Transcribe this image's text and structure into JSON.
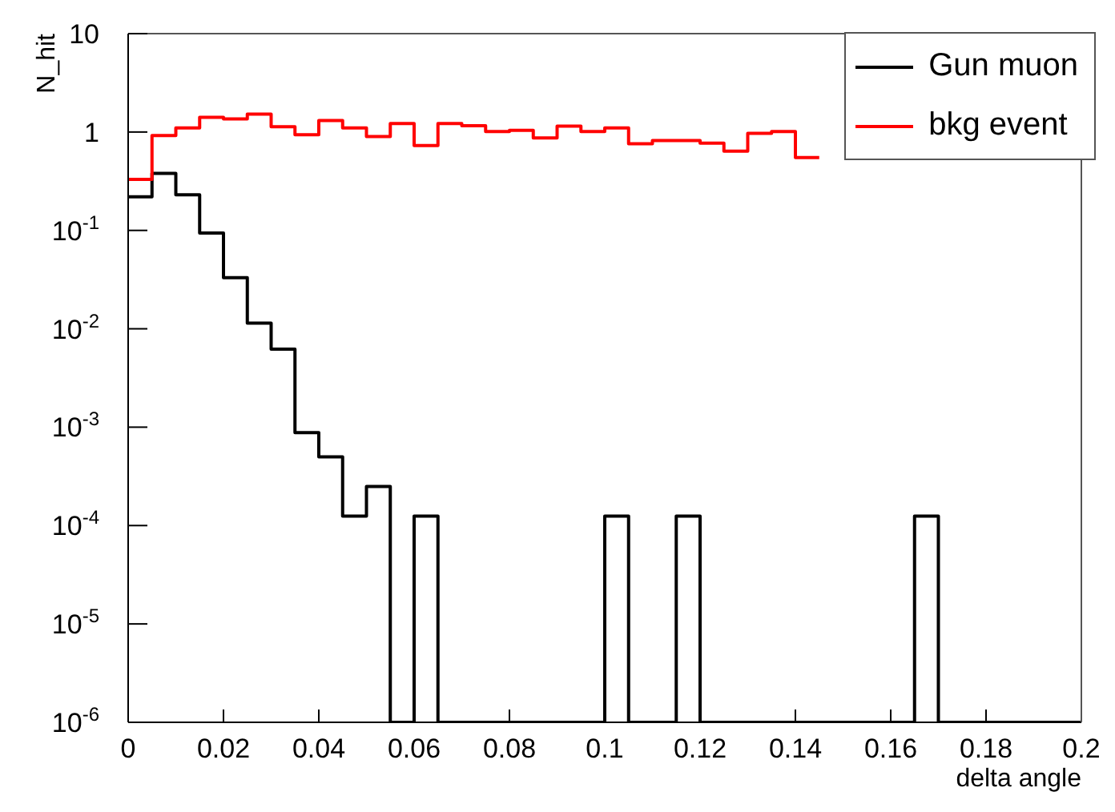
{
  "chart_data": {
    "type": "histogram",
    "xlabel": "delta angle",
    "ylabel": "N_hit",
    "log": "y",
    "legend": "top right",
    "bins": [
      0,
      0.005,
      0.01,
      0.015,
      0.02,
      0.025,
      0.03,
      0.035,
      0.04,
      0.045,
      0.05,
      0.055,
      0.06,
      0.065,
      0.07,
      0.075,
      0.08,
      0.085,
      0.09,
      0.095,
      0.1,
      0.105,
      0.11,
      0.115,
      0.12,
      0.125,
      0.13,
      0.135,
      0.14,
      0.145,
      0.15,
      0.155,
      0.16,
      0.165,
      0.17,
      0.175,
      0.18,
      0.185,
      0.19,
      0.195,
      0.2
    ],
    "series": [
      {
        "name": "Gun muon",
        "color": "#000000",
        "values": [
          0.22,
          0.38,
          0.23,
          0.094,
          0.033,
          0.0114,
          0.0062,
          0.00088,
          0.0005,
          0.000125,
          0.00025,
          1e-06,
          0.000125,
          1e-06,
          1e-06,
          1e-06,
          1e-06,
          1e-06,
          1e-06,
          1e-06,
          0.000125,
          1e-06,
          1e-06,
          0.000125,
          1e-06,
          1e-06,
          1e-06,
          1e-06,
          1e-06,
          1e-06,
          1e-06,
          1e-06,
          1e-06,
          0.000125,
          1e-06,
          1e-06,
          1e-06,
          1e-06,
          1e-06,
          1e-06
        ]
      },
      {
        "name": "bkg event",
        "color": "#ff0000",
        "bins": [
          0,
          0.005,
          0.01,
          0.015,
          0.02,
          0.025,
          0.03,
          0.035,
          0.04,
          0.045,
          0.05,
          0.055,
          0.06,
          0.065,
          0.07,
          0.075,
          0.08,
          0.085,
          0.09,
          0.095,
          0.1,
          0.105,
          0.11,
          0.115,
          0.12,
          0.125,
          0.13,
          0.135,
          0.14,
          0.145
        ],
        "values": [
          0.33,
          0.92,
          1.1,
          1.41,
          1.36,
          1.52,
          1.13,
          0.94,
          1.31,
          1.1,
          0.9,
          1.22,
          0.73,
          1.22,
          1.16,
          1.01,
          1.04,
          0.87,
          1.15,
          1.01,
          1.1,
          0.76,
          0.82,
          0.82,
          0.77,
          0.64,
          0.97,
          1.01,
          0.55
        ]
      }
    ],
    "xlim": [
      0,
      0.2
    ],
    "xticks": [
      0,
      0.02,
      0.04,
      0.06,
      0.08,
      0.1,
      0.12,
      0.14,
      0.16,
      0.18,
      0.2
    ],
    "ylim": [
      1e-06,
      10
    ],
    "yticks": [
      {
        "value": 1e-06,
        "label": "10$^{-6}$"
      },
      {
        "value": 1e-05,
        "label": "10$^{-5}$"
      },
      {
        "value": 0.0001,
        "label": "10$^{-4}$"
      },
      {
        "value": 0.001,
        "label": "10$^{-3}$"
      },
      {
        "value": 0.01,
        "label": "10$^{-2}$"
      },
      {
        "value": 0.1,
        "label": "10$^{-1}$"
      },
      1,
      10
    ]
  }
}
